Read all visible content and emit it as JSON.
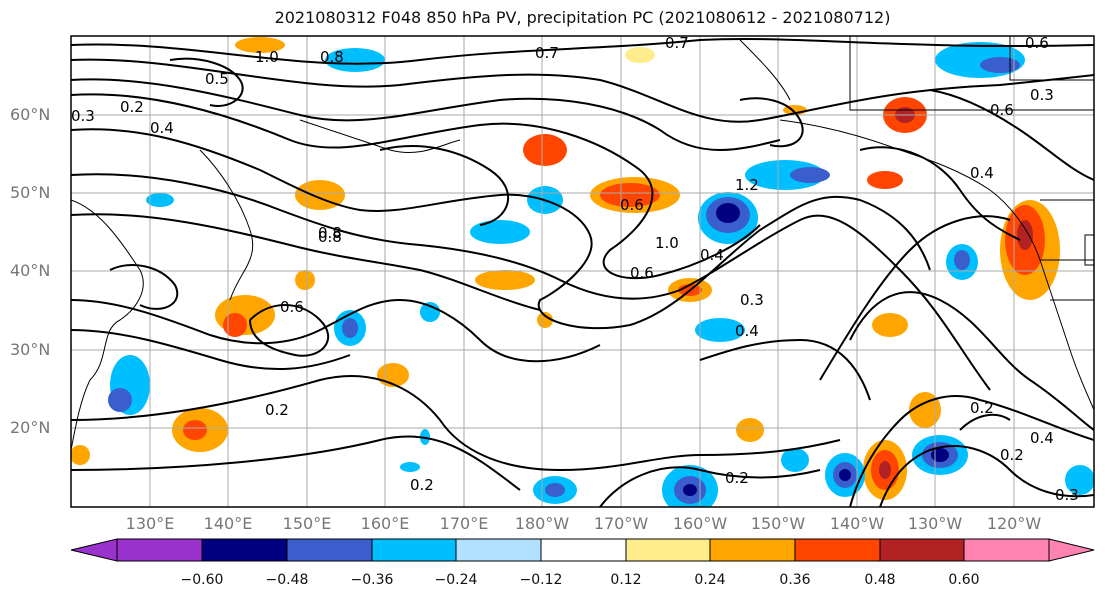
{
  "title": "2021080312 F048 850 hPa PV, precipitation PC (2021080612 - 2021080712)",
  "lat_labels": [
    "60°N",
    "50°N",
    "40°N",
    "30°N",
    "20°N"
  ],
  "lon_labels": [
    "130°E",
    "140°E",
    "150°E",
    "160°E",
    "170°E",
    "180°W",
    "170°W",
    "160°W",
    "150°W",
    "140°W",
    "130°W",
    "120°W"
  ],
  "colorbar": {
    "ticks": [
      "−0.60",
      "−0.48",
      "−0.36",
      "−0.24",
      "−0.12",
      "0.12",
      "0.24",
      "0.36",
      "0.48",
      "0.60"
    ],
    "colors": [
      "#9a32cd",
      "#000080",
      "#3a5fcd",
      "#00bfff",
      "#b0e2ff",
      "#ffffff",
      "#ffec8b",
      "#ffa500",
      "#ff4500",
      "#b22222",
      "#ff83b0"
    ]
  },
  "contour_labels": [
    "0.2",
    "0.3",
    "0.4",
    "0.5",
    "0.6",
    "0.7",
    "0.8",
    "1.0",
    "1.2",
    "0.2",
    "0.4",
    "0.3",
    "0.6",
    "0.2",
    "0.4",
    "0.6",
    "1.0",
    "0.8",
    "0.4",
    "0.3",
    "0.2",
    "0.2",
    "0.3",
    "0.4",
    "0.6",
    "0.7",
    "0.8",
    "0.6",
    "0.2"
  ]
}
